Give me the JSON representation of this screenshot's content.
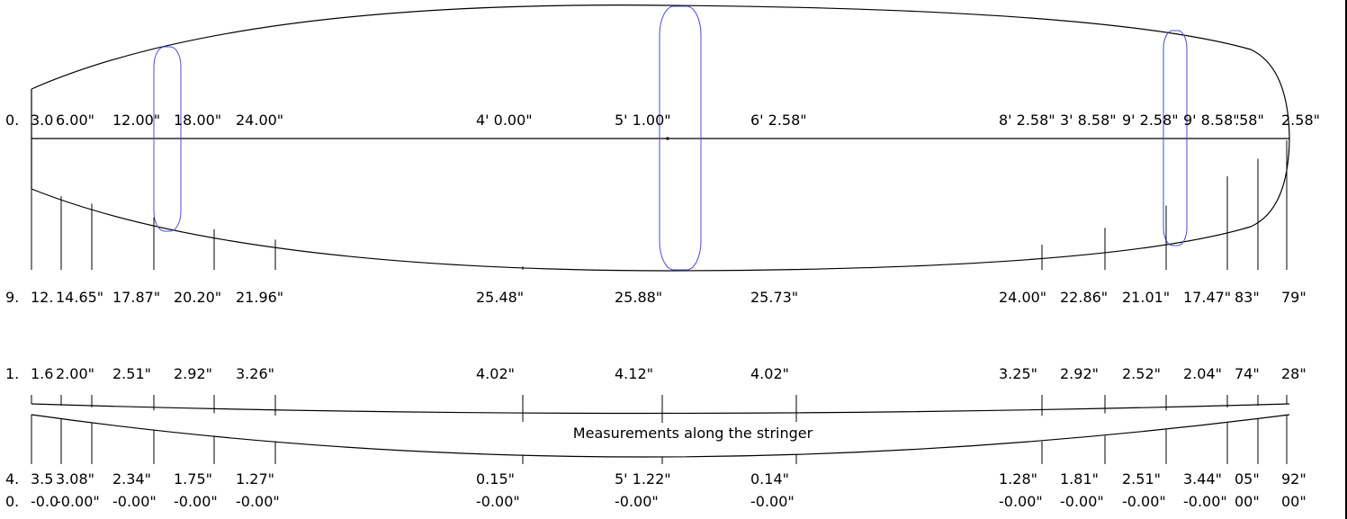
{
  "colors": {
    "outline": "#000000",
    "station": "#4b4bd6",
    "background": "#ffffff"
  },
  "stringer_caption": "Measurements along the stringer",
  "top_labels": [
    "0.",
    "3.0",
    "6.00\"",
    "12.00\"",
    "18.00\"",
    "24.00\"",
    "4' 0.00\"",
    "5' 1.00\"",
    "6' 2.58\"",
    "8' 2.58\"",
    "3' 8.58\"",
    "9' 2.58\"",
    "9' 8.58\"",
    ".58\"",
    "2.58\""
  ],
  "width_labels": [
    "9.",
    "12.",
    "14.65\"",
    "17.87\"",
    "20.20\"",
    "21.96\"",
    "25.48\"",
    "25.88\"",
    "25.73\"",
    "24.00\"",
    "22.86\"",
    "21.01\"",
    "17.47\"",
    "83\"",
    "79\""
  ],
  "thickness_labels": [
    "1.",
    "1.6",
    "2.00\"",
    "2.51\"",
    "2.92\"",
    "3.26\"",
    "4.02\"",
    "4.12\"",
    "4.02\"",
    "3.25\"",
    "2.92\"",
    "2.52\"",
    "2.04\"",
    "74\"",
    "28\""
  ],
  "rocker_labels": [
    "4.",
    "3.5",
    "3.08\"",
    "2.34\"",
    "1.75\"",
    "1.27\"",
    "0.15\"",
    "5' 1.22\"",
    "0.14\"",
    "1.28\"",
    "1.81\"",
    "2.51\"",
    "3.44\"",
    "05\"",
    "92\""
  ],
  "offset_labels": [
    "0.",
    "-0.0",
    "-0.00\"",
    "-0.00\"",
    "-0.00\"",
    "-0.00\"",
    "-0.00\"",
    "-0.00\"",
    "-0.00\"",
    "-0.00\"",
    "-0.00\"",
    "-0.00\"",
    "-0.00\"",
    "00\"",
    "00\""
  ]
}
